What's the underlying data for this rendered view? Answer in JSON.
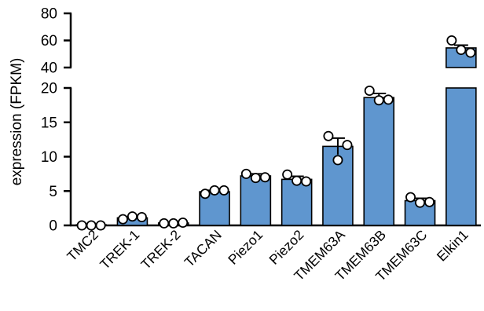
{
  "chart_data": {
    "type": "bar",
    "ylabel": "expression (FPKM)",
    "categories": [
      "TMC2",
      "TREK-1",
      "TREK-2",
      "TACAN",
      "Piezo1",
      "Piezo2",
      "TMEM63A",
      "TMEM63B",
      "TMEM63C",
      "Elkin1"
    ],
    "values": [
      0.05,
      1.1,
      0.35,
      4.9,
      7.2,
      6.7,
      11.5,
      18.6,
      3.6,
      54.5
    ],
    "error": [
      0.0,
      0.15,
      0.1,
      0.2,
      0.3,
      0.45,
      1.2,
      0.6,
      0.35,
      2.0
    ],
    "points": [
      [
        0.0,
        0.0,
        0.0
      ],
      [
        0.9,
        1.3,
        1.2
      ],
      [
        0.3,
        0.3,
        0.4
      ],
      [
        4.6,
        5.1,
        5.1
      ],
      [
        7.5,
        6.9,
        7.0
      ],
      [
        7.4,
        6.5,
        6.4
      ],
      [
        13.0,
        9.5,
        11.7
      ],
      [
        19.6,
        18.2,
        18.3
      ],
      [
        4.1,
        3.3,
        3.4
      ],
      [
        60.0,
        53.0,
        51.0
      ]
    ],
    "y_axis_lower": {
      "ylim": [
        0,
        20
      ],
      "ticks": [
        0,
        5,
        10,
        15,
        20
      ]
    },
    "y_axis_upper": {
      "ylim": [
        40,
        80
      ],
      "ticks": [
        40,
        60,
        80
      ]
    },
    "grid": false,
    "legend": "none",
    "colors": {
      "bar": "#5f96cf",
      "points": "#ffffff",
      "axis": "#000000"
    }
  }
}
